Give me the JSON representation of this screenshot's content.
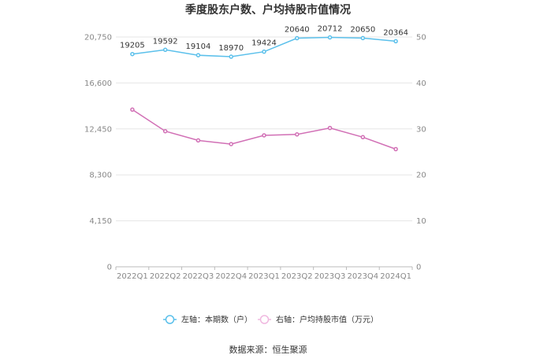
{
  "chart_data": {
    "type": "line",
    "title": "季度股东户数、户均持股市值情况",
    "categories": [
      "2022Q1",
      "2022Q2",
      "2022Q3",
      "2022Q4",
      "2023Q1",
      "2023Q2",
      "2023Q3",
      "2023Q4",
      "2024Q1"
    ],
    "left_axis": {
      "ylim": [
        0,
        20750
      ],
      "ticks": [
        "0",
        "4,150",
        "8,300",
        "12,450",
        "16,600",
        "20,750"
      ]
    },
    "right_axis": {
      "ylim": [
        0,
        50
      ],
      "ticks": [
        "0",
        "10",
        "20",
        "30",
        "40",
        "50"
      ]
    },
    "series": [
      {
        "name": "左轴：本期数（户）",
        "axis": "left",
        "color": "#5bc0eb",
        "values": [
          19205,
          19592,
          19104,
          18970,
          19424,
          20640,
          20712,
          20650,
          20364
        ],
        "labels": [
          "19205",
          "19592",
          "19104",
          "18970",
          "19424",
          "20640",
          "20712",
          "20650",
          "20364"
        ]
      },
      {
        "name": "右轴：户均持股市值（万元）",
        "axis": "right",
        "color": "#d16fb5",
        "values": [
          34.2,
          29.5,
          27.5,
          26.7,
          28.6,
          28.8,
          30.2,
          28.2,
          25.6
        ]
      }
    ],
    "grid": true,
    "legend_position": "bottom"
  },
  "source": "数据来源：恒生聚源"
}
